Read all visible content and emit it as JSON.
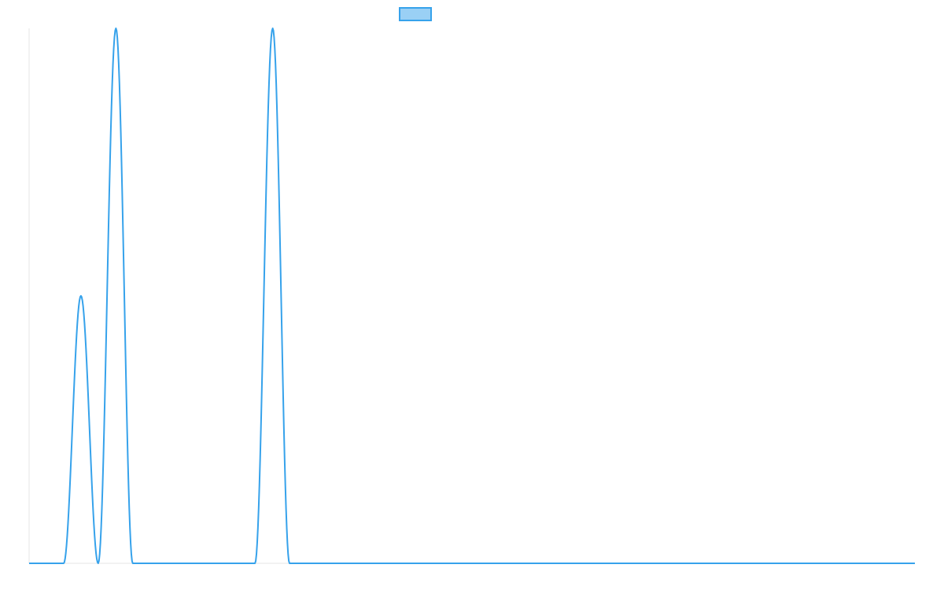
{
  "chart_data": {
    "type": "line",
    "title": "",
    "xlabel": "",
    "ylabel": "",
    "legend": {
      "placement": "top-center",
      "label": ""
    },
    "grid": false,
    "xlim": [
      0,
      1
    ],
    "ylim": [
      0,
      1
    ],
    "series": [
      {
        "name": "",
        "color": "#36a2eb",
        "fill": "#9ad0f5",
        "points": [
          [
            0.0,
            0.0
          ],
          [
            0.039,
            0.0
          ],
          [
            0.0585,
            0.5
          ],
          [
            0.078,
            0.0
          ],
          [
            0.098,
            1.0
          ],
          [
            0.117,
            0.0
          ],
          [
            0.255,
            0.0
          ],
          [
            0.275,
            1.0
          ],
          [
            0.294,
            0.0
          ],
          [
            1.0,
            0.0
          ]
        ]
      }
    ]
  }
}
